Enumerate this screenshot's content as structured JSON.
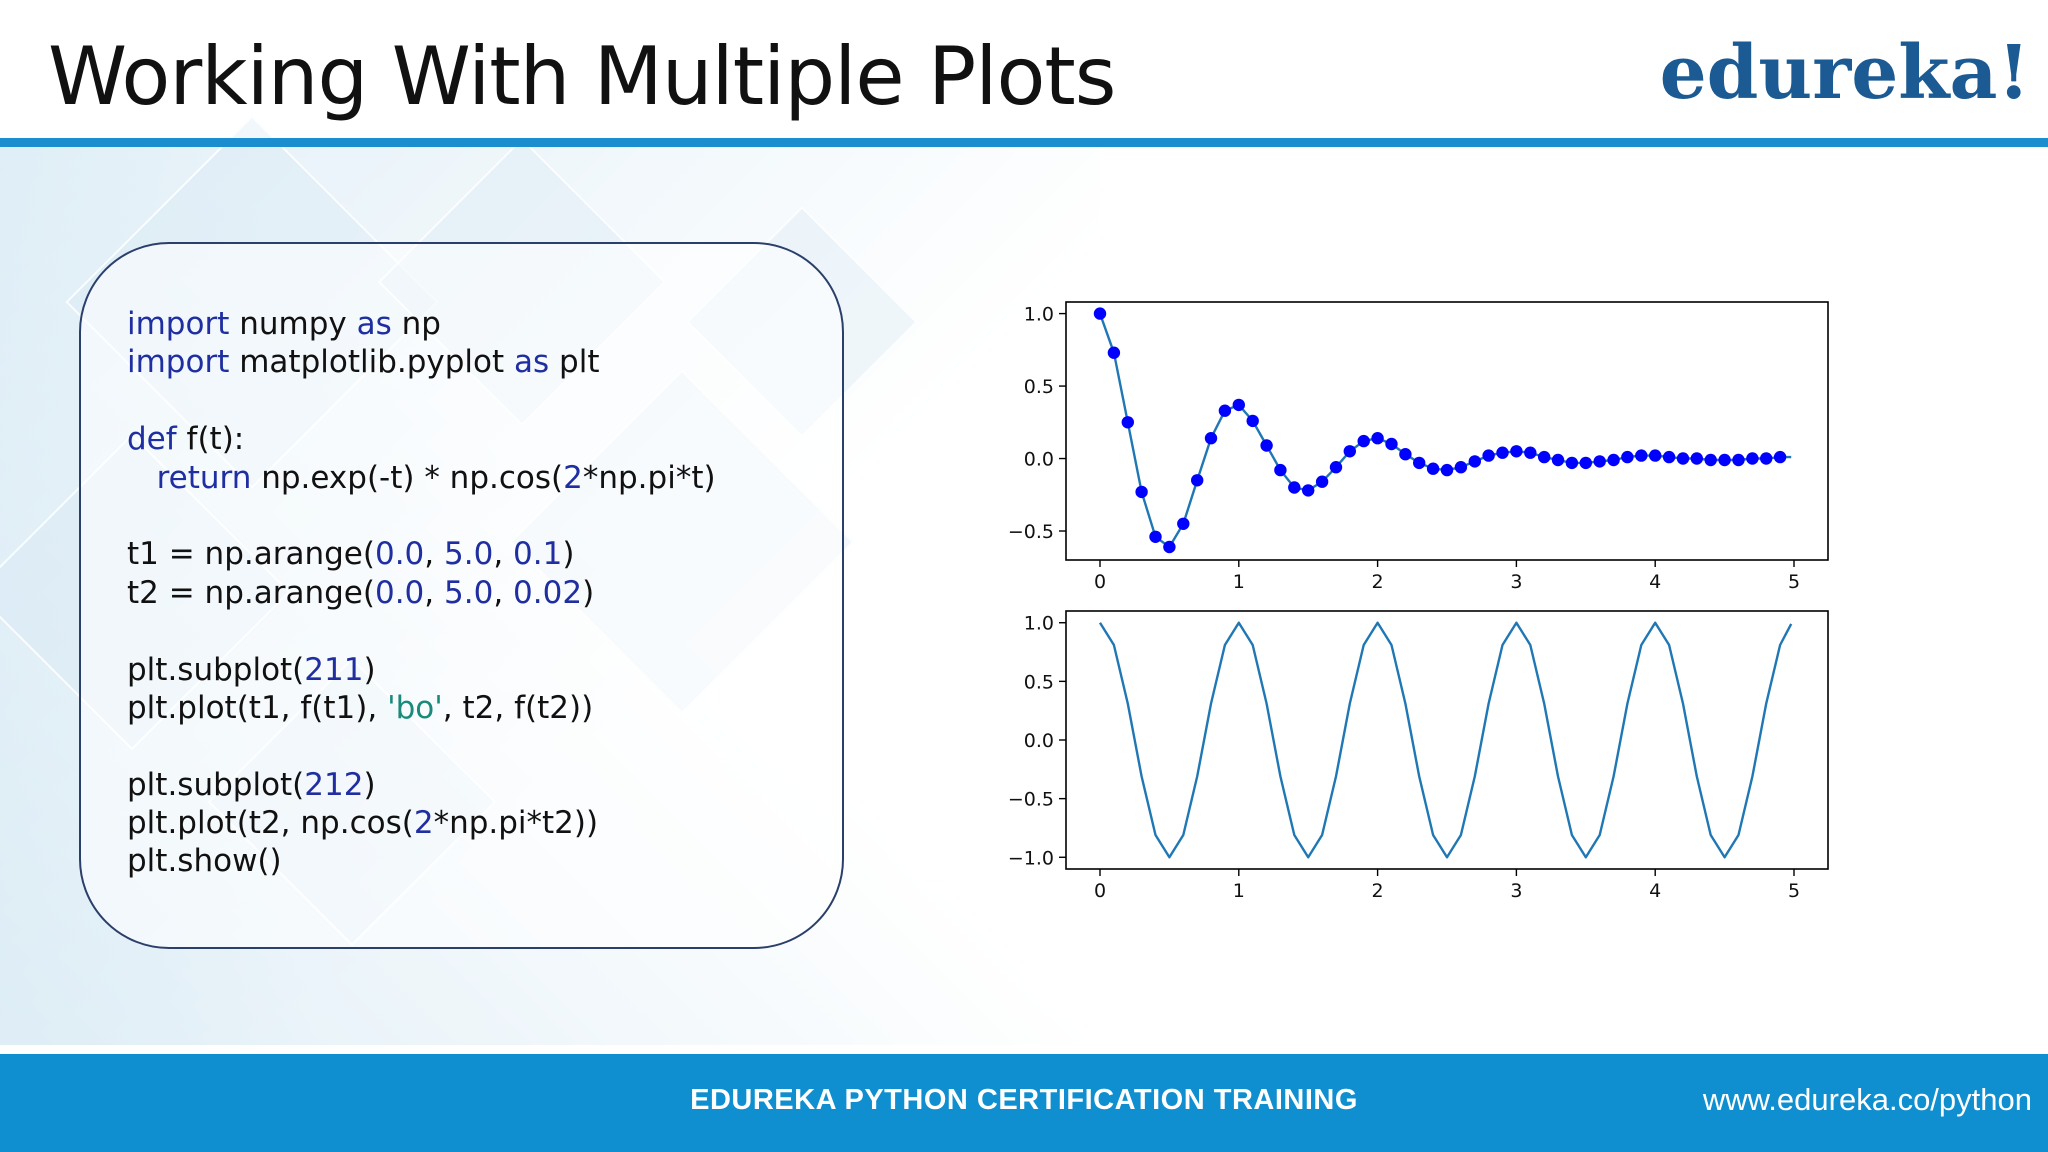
{
  "slide": {
    "title": "Working With Multiple Plots",
    "logo": "edureka!",
    "footer_title": "EDUREKA PYTHON CERTIFICATION TRAINING",
    "footer_url": "www.edureka.co/python"
  },
  "colors": {
    "header_rule": "#1b8ed0",
    "footer_bg": "#0f8fd0",
    "logo": "#1c5a93",
    "code_keyword": "#1f2ea0",
    "code_string": "#1a8a7a",
    "plot_line": "#1f77b4",
    "plot_markers": "#0000ff"
  },
  "code_lines": [
    [
      {
        "t": "import",
        "c": "kw"
      },
      {
        "t": " numpy "
      },
      {
        "t": "as",
        "c": "kw"
      },
      {
        "t": " np"
      }
    ],
    [
      {
        "t": "import",
        "c": "kw"
      },
      {
        "t": " matplotlib.pyplot "
      },
      {
        "t": "as",
        "c": "kw"
      },
      {
        "t": " plt"
      }
    ],
    [],
    [
      {
        "t": "def",
        "c": "kw"
      },
      {
        "t": " f(t):"
      }
    ],
    [
      {
        "t": "   "
      },
      {
        "t": "return",
        "c": "kw"
      },
      {
        "t": " np.exp(-t) * np.cos("
      },
      {
        "t": "2",
        "c": "num"
      },
      {
        "t": "*np.pi*t)"
      }
    ],
    [],
    [
      {
        "t": "t1 = np.arange("
      },
      {
        "t": "0.0",
        "c": "num"
      },
      {
        "t": ", "
      },
      {
        "t": "5.0",
        "c": "num"
      },
      {
        "t": ", "
      },
      {
        "t": "0.1",
        "c": "num"
      },
      {
        "t": ")"
      }
    ],
    [
      {
        "t": "t2 = np.arange("
      },
      {
        "t": "0.0",
        "c": "num"
      },
      {
        "t": ", "
      },
      {
        "t": "5.0",
        "c": "num"
      },
      {
        "t": ", "
      },
      {
        "t": "0.02",
        "c": "num"
      },
      {
        "t": ")"
      }
    ],
    [],
    [
      {
        "t": "plt.subplot("
      },
      {
        "t": "211",
        "c": "num"
      },
      {
        "t": ")"
      }
    ],
    [
      {
        "t": "plt.plot(t1, f(t1), "
      },
      {
        "t": "'bo'",
        "c": "str"
      },
      {
        "t": ", t2, f(t2))"
      }
    ],
    [],
    [
      {
        "t": "plt.subplot("
      },
      {
        "t": "212",
        "c": "num"
      },
      {
        "t": ")"
      }
    ],
    [
      {
        "t": "plt.plot(t2, np.cos("
      },
      {
        "t": "2",
        "c": "num"
      },
      {
        "t": "*np.pi*t2))"
      }
    ],
    [
      {
        "t": "plt.show()"
      }
    ]
  ],
  "chart_data": [
    {
      "type": "line",
      "title": "",
      "xlabel": "",
      "ylabel": "",
      "x_range": [
        0.0,
        5.0
      ],
      "xlim": [
        -0.245,
        5.245
      ],
      "ylim": [
        -0.7,
        1.08
      ],
      "xticks": [
        "0",
        "1",
        "2",
        "3",
        "4",
        "5"
      ],
      "yticks": [
        "−0.5",
        "0.0",
        "0.5",
        "1.0"
      ],
      "grid": false,
      "series": [
        {
          "style": "line",
          "x": [
            0,
            0.1,
            0.2,
            0.3,
            0.4,
            0.5,
            0.6,
            0.7,
            0.8,
            0.9,
            1.0,
            1.1,
            1.2,
            1.3,
            1.4,
            1.5,
            1.6,
            1.7,
            1.8,
            1.9,
            2.0,
            2.1,
            2.2,
            2.3,
            2.4,
            2.5,
            2.6,
            2.7,
            2.8,
            2.9,
            3.0,
            3.1,
            3.2,
            3.3,
            3.4,
            3.5,
            3.6,
            3.7,
            3.8,
            3.9,
            4.0,
            4.1,
            4.2,
            4.3,
            4.4,
            4.5,
            4.6,
            4.7,
            4.8,
            4.9,
            4.98
          ],
          "y": [
            1.0,
            0.73,
            0.25,
            -0.23,
            -0.54,
            -0.61,
            -0.45,
            -0.15,
            0.14,
            0.33,
            0.37,
            0.26,
            0.09,
            -0.08,
            -0.2,
            -0.22,
            -0.16,
            -0.06,
            0.05,
            0.12,
            0.14,
            0.1,
            0.03,
            -0.03,
            -0.07,
            -0.08,
            -0.06,
            -0.02,
            0.02,
            0.04,
            0.05,
            0.04,
            0.01,
            -0.01,
            -0.03,
            -0.03,
            -0.02,
            -0.01,
            0.01,
            0.02,
            0.02,
            0.01,
            0.0,
            -0.0,
            -0.01,
            -0.01,
            -0.01,
            -0.0,
            0.0,
            0.01,
            0.01
          ]
        },
        {
          "style": "markers",
          "x": [
            0,
            0.1,
            0.2,
            0.3,
            0.4,
            0.5,
            0.6,
            0.7,
            0.8,
            0.9,
            1.0,
            1.1,
            1.2,
            1.3,
            1.4,
            1.5,
            1.6,
            1.7,
            1.8,
            1.9,
            2.0,
            2.1,
            2.2,
            2.3,
            2.4,
            2.5,
            2.6,
            2.7,
            2.8,
            2.9,
            3.0,
            3.1,
            3.2,
            3.3,
            3.4,
            3.5,
            3.6,
            3.7,
            3.8,
            3.9,
            4.0,
            4.1,
            4.2,
            4.3,
            4.4,
            4.5,
            4.6,
            4.7,
            4.8,
            4.9
          ],
          "y": [
            1.0,
            0.73,
            0.25,
            -0.23,
            -0.54,
            -0.61,
            -0.45,
            -0.15,
            0.14,
            0.33,
            0.37,
            0.26,
            0.09,
            -0.08,
            -0.2,
            -0.22,
            -0.16,
            -0.06,
            0.05,
            0.12,
            0.14,
            0.1,
            0.03,
            -0.03,
            -0.07,
            -0.08,
            -0.06,
            -0.02,
            0.02,
            0.04,
            0.05,
            0.04,
            0.01,
            -0.01,
            -0.03,
            -0.03,
            -0.02,
            -0.01,
            0.01,
            0.02,
            0.02,
            0.01,
            0.0,
            -0.0,
            -0.01,
            -0.01,
            -0.01,
            -0.0,
            0.0,
            0.01
          ]
        }
      ]
    },
    {
      "type": "line",
      "title": "",
      "xlabel": "",
      "ylabel": "",
      "x_range": [
        0.0,
        5.0
      ],
      "xlim": [
        -0.245,
        5.245
      ],
      "ylim": [
        -1.1,
        1.1
      ],
      "xticks": [
        "0",
        "1",
        "2",
        "3",
        "4",
        "5"
      ],
      "yticks": [
        "−1.0",
        "−0.5",
        "0.0",
        "0.5",
        "1.0"
      ],
      "grid": false,
      "series": [
        {
          "style": "line",
          "x": [
            0,
            0.1,
            0.2,
            0.3,
            0.4,
            0.5,
            0.6,
            0.7,
            0.8,
            0.9,
            1.0,
            1.1,
            1.2,
            1.3,
            1.4,
            1.5,
            1.6,
            1.7,
            1.8,
            1.9,
            2.0,
            2.1,
            2.2,
            2.3,
            2.4,
            2.5,
            2.6,
            2.7,
            2.8,
            2.9,
            3.0,
            3.1,
            3.2,
            3.3,
            3.4,
            3.5,
            3.6,
            3.7,
            3.8,
            3.9,
            4.0,
            4.1,
            4.2,
            4.3,
            4.4,
            4.5,
            4.6,
            4.7,
            4.8,
            4.9,
            4.98
          ],
          "y": [
            1.0,
            0.81,
            0.31,
            -0.31,
            -0.81,
            -1.0,
            -0.81,
            -0.31,
            0.31,
            0.81,
            1.0,
            0.81,
            0.31,
            -0.31,
            -0.81,
            -1.0,
            -0.81,
            -0.31,
            0.31,
            0.81,
            1.0,
            0.81,
            0.31,
            -0.31,
            -0.81,
            -1.0,
            -0.81,
            -0.31,
            0.31,
            0.81,
            1.0,
            0.81,
            0.31,
            -0.31,
            -0.81,
            -1.0,
            -0.81,
            -0.31,
            0.31,
            0.81,
            1.0,
            0.81,
            0.31,
            -0.31,
            -0.81,
            -1.0,
            -0.81,
            -0.31,
            0.31,
            0.81,
            0.99
          ]
        }
      ]
    }
  ]
}
